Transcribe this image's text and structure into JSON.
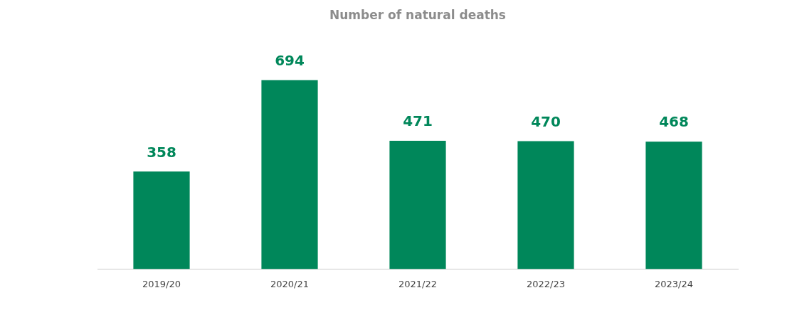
{
  "chart_data": {
    "type": "bar",
    "title": "Number of natural deaths",
    "categories": [
      "2019/20",
      "2020/21",
      "2021/22",
      "2022/23",
      "2023/24"
    ],
    "values": [
      358,
      694,
      471,
      470,
      468
    ],
    "color": "#00875a",
    "data_labels": true,
    "grid": false,
    "legend": false
  }
}
